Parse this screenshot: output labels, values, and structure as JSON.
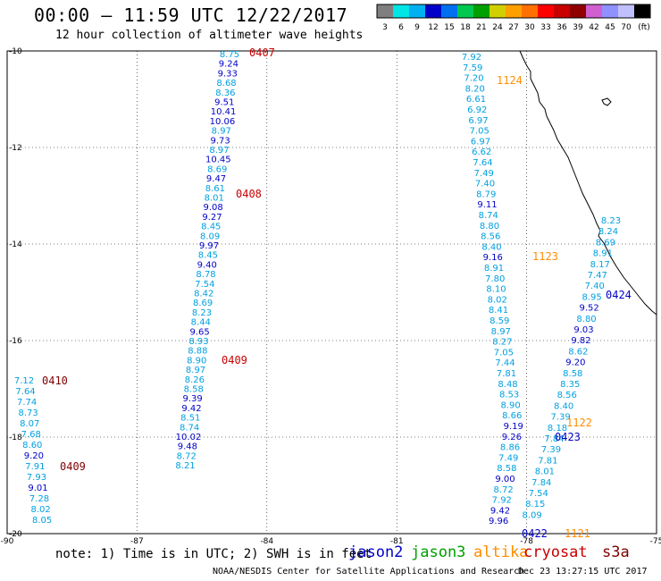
{
  "title": "00:00 – 11:59 UTC 12/22/2017",
  "subtitle": "12 hour collection of altimeter wave heights",
  "colorbar": {
    "colors": [
      "#7f7f7f",
      "#00e5e5",
      "#00b0f0",
      "#0000c8",
      "#0070f0",
      "#00c850",
      "#00a000",
      "#d0d000",
      "#ffa000",
      "#ff7000",
      "#ff0000",
      "#c80000",
      "#900000",
      "#d060d0",
      "#9090ff",
      "#c0c0ff",
      "#000000"
    ],
    "labels": [
      "3",
      "6",
      "9",
      "12",
      "15",
      "18",
      "21",
      "24",
      "27",
      "30",
      "33",
      "36",
      "39",
      "42",
      "45",
      "70",
      "(ft)"
    ]
  },
  "axes": {
    "lat_ticks": [
      "-10",
      "-12",
      "-14",
      "-16",
      "-18",
      "-20"
    ],
    "lon_ticks": [
      "-90",
      "-87",
      "-84",
      "-81",
      "-78",
      "-75"
    ],
    "lat_range": [
      -20,
      -10
    ],
    "lon_range": [
      -90,
      -75
    ]
  },
  "sat_colors": {
    "jason2": "#0000c8",
    "jason3": "#00a000",
    "altika": "#ff8c00",
    "cryosat": "#c80000",
    "s3a": "#800000",
    "light": "#00a0e0"
  },
  "chart_data": {
    "type": "scatter",
    "units": "ft",
    "tracks": [
      {
        "id": "trackA",
        "values": [
          "8.75",
          "9.24",
          "9.33",
          "8.68",
          "8.36",
          "9.51",
          "10.41",
          "10.06",
          "8.97",
          "9.73",
          "8.97",
          "10.45",
          "8.69",
          "9.47",
          "8.61",
          "8.01",
          "9.08",
          "9.27",
          "8.45",
          "8.09",
          "9.97",
          "8.45",
          "9.40",
          "8.78",
          "7.54",
          "8.42",
          "8.69",
          "8.23",
          "8.44",
          "9.65",
          "8.93",
          "8.88",
          "8.90",
          "8.97",
          "8.26",
          "8.58",
          "9.39",
          "9.42",
          "8.51",
          "8.74",
          "10.02",
          "9.48",
          "8.72",
          "8.21"
        ]
      },
      {
        "id": "trackB",
        "values": [
          "7.12",
          "7.64",
          "7.74",
          "8.73",
          "8.07",
          "7.68",
          "8.60",
          "9.20",
          "7.91",
          "7.93",
          "9.01",
          "7.28",
          "8.02",
          "8.05"
        ]
      },
      {
        "id": "trackC",
        "values": [
          "7.92",
          "7.59",
          "7.20",
          "8.20",
          "6.61",
          "6.92",
          "6.97",
          "7.05",
          "6.97",
          "6.62",
          "7.64",
          "7.49",
          "7.40",
          "8.79",
          "9.11",
          "8.74",
          "8.80",
          "8.56",
          "8.40",
          "9.16",
          "8.91",
          "7.80",
          "8.10",
          "8.02",
          "8.41",
          "8.59",
          "8.97",
          "8.27",
          "7.05",
          "7.44",
          "7.81",
          "8.48",
          "8.53",
          "8.90",
          "8.66",
          "9.19",
          "9.26",
          "8.86",
          "7.49",
          "8.58",
          "9.00",
          "8.72",
          "7.92",
          "9.42",
          "9.96"
        ]
      },
      {
        "id": "trackD",
        "values": [
          "8.23",
          "8.24",
          "8.69",
          "8.91",
          "8.17",
          "7.47",
          "7.40",
          "8.95",
          "9.52",
          "8.80",
          "9.03",
          "9.82",
          "8.62",
          "9.20",
          "8.58",
          "8.35",
          "8.56",
          "8.40",
          "7.39",
          "8.18",
          "7.84",
          "7.39",
          "7.81",
          "8.01",
          "7.84",
          "7.54",
          "8.15",
          "8.09"
        ]
      }
    ],
    "pass_labels": [
      "0407",
      "0408",
      "0409",
      "0410",
      "0409",
      "1124",
      "1123",
      "0424",
      "1122",
      "0423",
      "0422",
      "1121"
    ]
  },
  "note": "note: 1) Time is in UTC; 2) SWH is in feet",
  "satellites": [
    {
      "key": "jason2",
      "name": "jason2",
      "color": "#0000c8"
    },
    {
      "key": "jason3",
      "name": "jason3",
      "color": "#00a000"
    },
    {
      "key": "altika",
      "name": "altika",
      "color": "#ff8c00"
    },
    {
      "key": "cryosat",
      "name": "cryosat",
      "color": "#c80000"
    },
    {
      "key": "s3a",
      "name": "s3a",
      "color": "#800000"
    }
  ],
  "credit": "NOAA/NESDIS Center for Satellite Applications and Research",
  "timestamp": "Dec 23 13:27:15 UTC 2017"
}
